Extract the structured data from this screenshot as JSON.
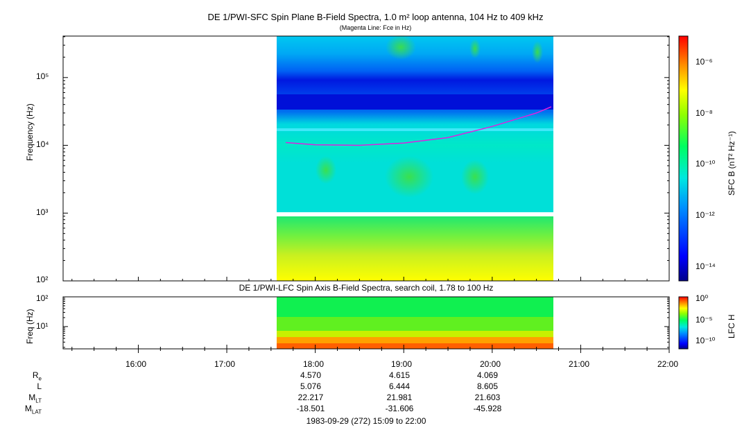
{
  "titles": {
    "main": "DE 1/PWI-SFC  Spin Plane B-Field Spectra, 1.0 m² loop antenna, 104 Hz to 409 kHz",
    "sub": "(Magenta Line: Fce in Hz)",
    "panel2": "DE 1/PWI-LFC  Spin Axis B-Field Spectra, search coil, 1.78 to 100 Hz"
  },
  "chart_data": [
    {
      "type": "heatmap",
      "title": "DE 1/PWI-SFC  Spin Plane B-Field Spectra, 1.0 m² loop antenna, 104 Hz to 409 kHz",
      "subtitle": "(Magenta Line: Fce in Hz)",
      "ylabel": "Frequency (Hz)",
      "yscale": "log",
      "ylim": [
        100,
        409000
      ],
      "yticks": [
        "10²",
        "10³",
        "10⁴",
        "10⁵"
      ],
      "colorbar_label": "SFC B (nT² Hz⁻¹)",
      "colorbar_scale": "log",
      "colorbar_ticks": [
        "10⁻¹⁴",
        "10⁻¹²",
        "10⁻¹⁰",
        "10⁻⁸",
        "10⁻⁶"
      ],
      "data_time_range": [
        "17:36",
        "20:42"
      ],
      "fce_line": {
        "color": "#e020e0",
        "time": [
          "17:40",
          "18:00",
          "18:30",
          "19:00",
          "19:30",
          "20:00",
          "20:30",
          "20:40"
        ],
        "freq_hz": [
          11000,
          10200,
          10000,
          10800,
          13000,
          19000,
          30000,
          37000
        ]
      }
    },
    {
      "type": "heatmap",
      "title": "DE 1/PWI-LFC  Spin Axis B-Field Spectra, search coil, 1.78 to 100 Hz",
      "ylabel": "Freq (Hz)",
      "yscale": "log",
      "ylim": [
        1.78,
        100
      ],
      "yticks": [
        "10¹",
        "10²"
      ],
      "colorbar_label": "LFC H",
      "colorbar_scale": "log",
      "colorbar_ticks": [
        "10⁻¹⁰",
        "10⁻⁵",
        "10⁰"
      ],
      "data_time_range": [
        "17:36",
        "20:42"
      ]
    }
  ],
  "xaxis": {
    "range": [
      "15:09",
      "22:00"
    ],
    "ticks": [
      "16:00",
      "17:00",
      "18:00",
      "19:00",
      "20:00",
      "21:00",
      "22:00"
    ]
  },
  "ephemeris": {
    "labels": [
      "R",
      "L",
      "M",
      "M"
    ],
    "label_subs": [
      "e",
      "",
      "LT",
      "LAT"
    ],
    "times": [
      "18:00",
      "19:00",
      "20:00"
    ],
    "rows": [
      [
        "4.570",
        "4.615",
        "4.069"
      ],
      [
        "5.076",
        "6.444",
        "8.605"
      ],
      [
        "22.217",
        "21.981",
        "21.603"
      ],
      [
        "-18.501",
        "-31.606",
        "-45.928"
      ]
    ]
  },
  "date_line": "1983-09-29 (272) 15:09 to 22:00"
}
